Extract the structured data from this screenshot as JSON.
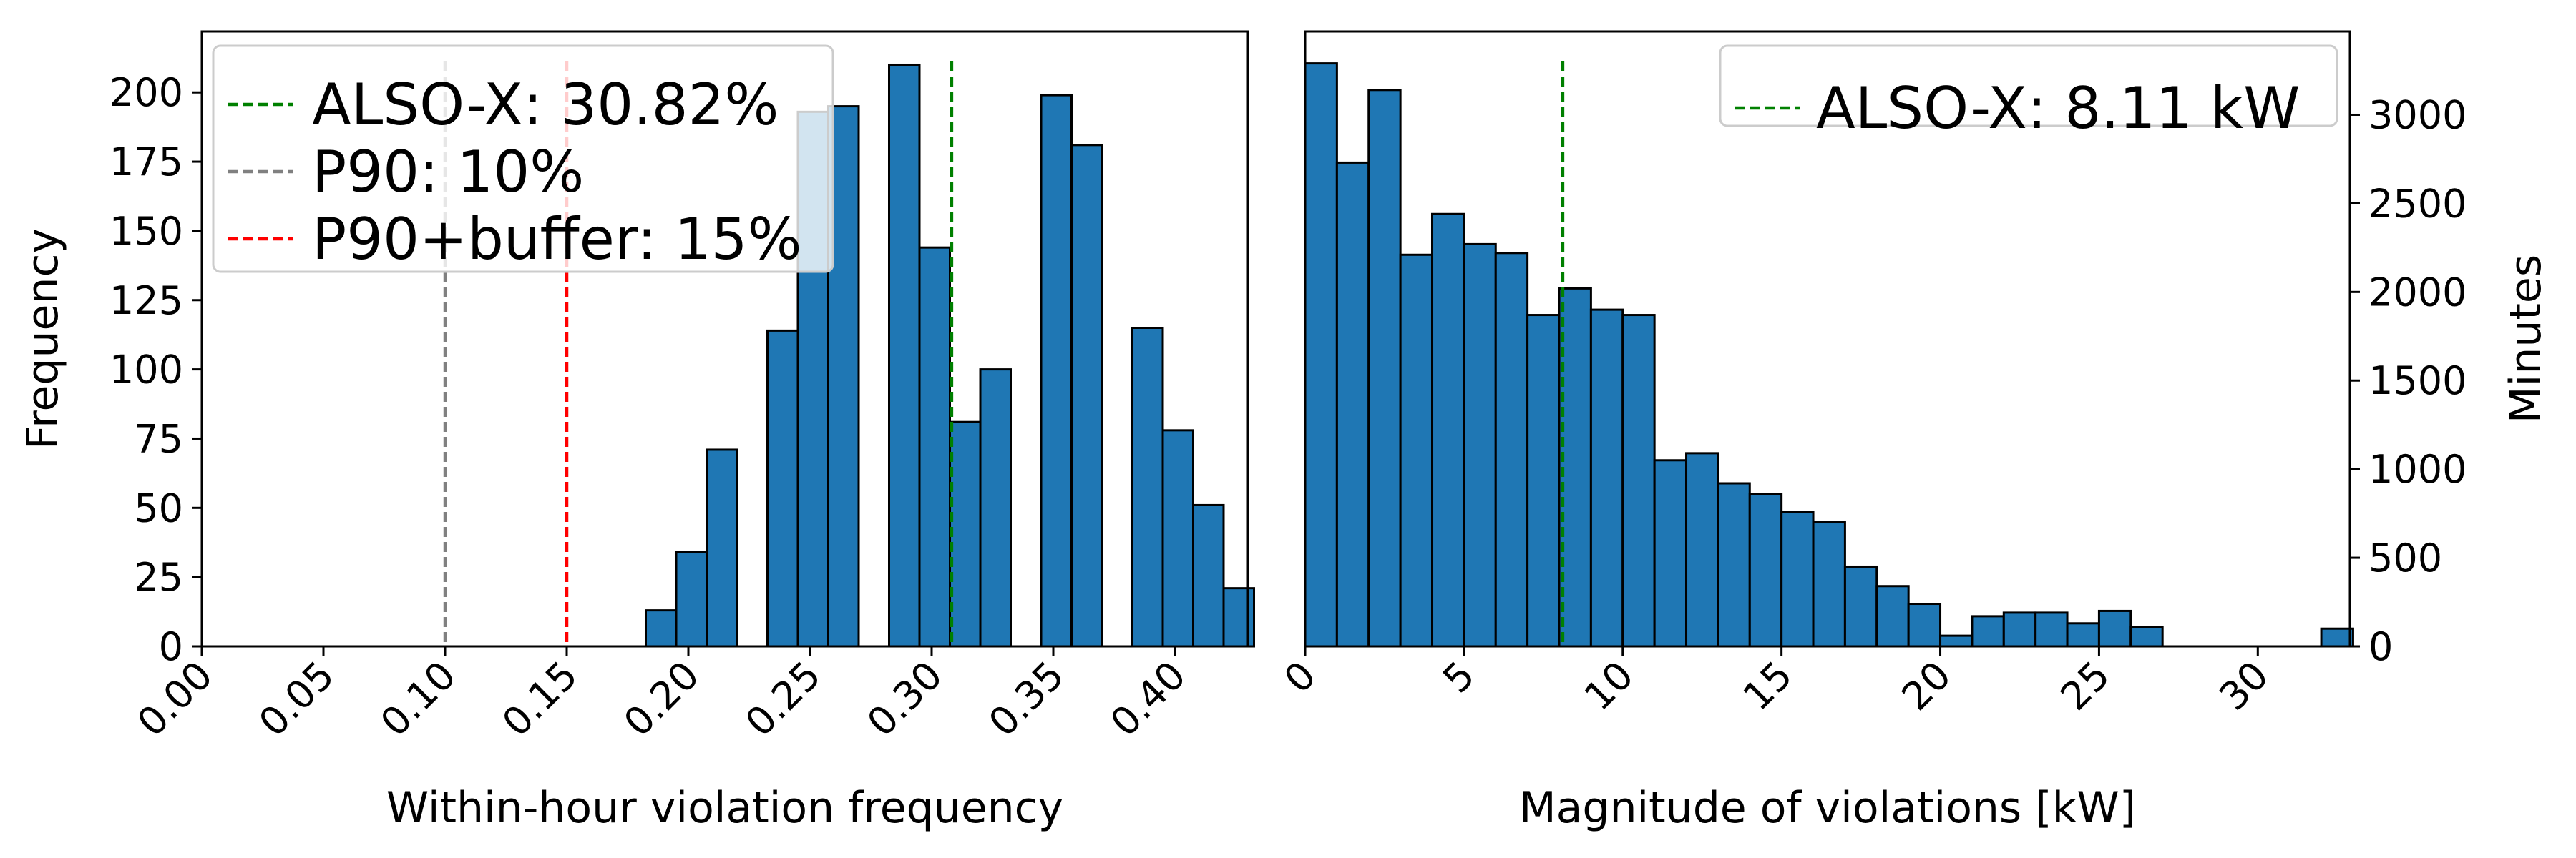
{
  "chart_data": [
    {
      "type": "bar",
      "subtype": "histogram",
      "xlabel": "Within-hour violation frequency",
      "ylabel": "Frequency",
      "xlim": [
        0.0,
        0.43
      ],
      "ylim": [
        0,
        222
      ],
      "xticks": [
        0.0,
        0.05,
        0.1,
        0.15,
        0.2,
        0.25,
        0.3,
        0.35,
        0.4
      ],
      "xtick_labels": [
        "0.00",
        "0.05",
        "0.10",
        "0.15",
        "0.20",
        "0.25",
        "0.30",
        "0.35",
        "0.40"
      ],
      "yticks": [
        0,
        25,
        50,
        75,
        100,
        125,
        150,
        175,
        200
      ],
      "bar_color": "#1f77b4",
      "bin_width": 0.0125,
      "bin_starts": [
        0.1825,
        0.195,
        0.2075,
        0.22,
        0.2325,
        0.245,
        0.2575,
        0.27,
        0.2825,
        0.295,
        0.3075,
        0.32,
        0.3325,
        0.345,
        0.3575,
        0.37,
        0.3825,
        0.395,
        0.4075,
        0.42
      ],
      "values": [
        13,
        34,
        71,
        0,
        114,
        193,
        195,
        0,
        210,
        144,
        81,
        100,
        0,
        199,
        181,
        0,
        115,
        78,
        51,
        21
      ],
      "vlines": [
        {
          "x": 0.3082,
          "label": "ALSO-X: 30.82%",
          "color": "#008000"
        },
        {
          "x": 0.1,
          "label": "P90: 10%",
          "color": "#808080"
        },
        {
          "x": 0.15,
          "label": "P90+buffer: 15%",
          "color": "#ff0000"
        }
      ],
      "legend_position": "top-left"
    },
    {
      "type": "bar",
      "subtype": "histogram",
      "xlabel": "Magnitude of violations [kW]",
      "ylabel": "Minutes",
      "y_axis_side": "right",
      "xlim": [
        0,
        32.9
      ],
      "ylim": [
        0,
        3470
      ],
      "xticks": [
        0,
        5,
        10,
        15,
        20,
        25,
        30
      ],
      "xtick_labels": [
        "0",
        "5",
        "10",
        "15",
        "20",
        "25",
        "30"
      ],
      "yticks": [
        0,
        500,
        1000,
        1500,
        2000,
        2500,
        3000
      ],
      "bar_color": "#1f77b4",
      "bin_width": 1.0,
      "bin_starts": [
        0,
        1,
        2,
        3,
        4,
        5,
        6,
        7,
        8,
        9,
        10,
        11,
        12,
        13,
        14,
        15,
        16,
        17,
        18,
        19,
        20,
        21,
        22,
        23,
        24,
        25,
        26,
        27,
        28,
        29,
        30,
        31,
        32
      ],
      "values": [
        3290,
        2730,
        3140,
        2210,
        2440,
        2270,
        2220,
        1870,
        2020,
        1900,
        1870,
        1050,
        1090,
        920,
        860,
        760,
        700,
        450,
        340,
        240,
        60,
        170,
        190,
        190,
        130,
        200,
        110,
        0,
        0,
        0,
        0,
        0,
        100
      ],
      "vlines": [
        {
          "x": 8.11,
          "label": "ALSO-X: 8.11 kW",
          "color": "#008000"
        }
      ],
      "legend_position": "top-right"
    }
  ]
}
